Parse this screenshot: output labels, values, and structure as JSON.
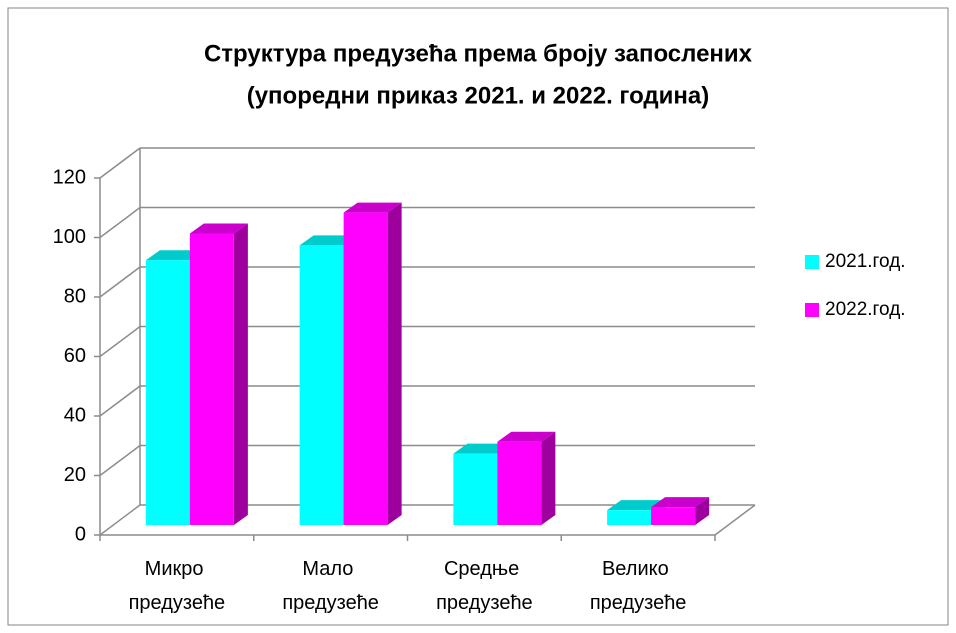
{
  "chart_data": {
    "type": "bar3d",
    "title": [
      "Структура предузећа према броју запослених",
      "(упоредни приказ 2021. и 2022. година)"
    ],
    "categories": [
      "Микро предузеће",
      "Мало предузеће",
      "Средње предузеће",
      "Велико предузеће"
    ],
    "series": [
      {
        "name": "2021.год.",
        "color": "#00ffff",
        "values": [
          89,
          94,
          24,
          5
        ]
      },
      {
        "name": "2022.год.",
        "color": "#ff00ff",
        "values": [
          98,
          105,
          28,
          6
        ]
      }
    ],
    "ylim": [
      0,
      120
    ],
    "yticks": [
      0,
      20,
      40,
      60,
      80,
      100,
      120
    ],
    "grid": true,
    "legend": "right"
  }
}
